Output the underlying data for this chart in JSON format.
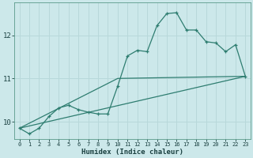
{
  "title": "",
  "xlabel": "Humidex (Indice chaleur)",
  "ylabel": "",
  "bg_color": "#cce8ea",
  "line_color": "#2e7d70",
  "grid_color": "#b8d8da",
  "xlim": [
    -0.5,
    23.5
  ],
  "ylim": [
    9.6,
    12.75
  ],
  "yticks": [
    10,
    11,
    12
  ],
  "xticks": [
    0,
    1,
    2,
    3,
    4,
    5,
    6,
    7,
    8,
    9,
    10,
    11,
    12,
    13,
    14,
    15,
    16,
    17,
    18,
    19,
    20,
    21,
    22,
    23
  ],
  "series_main": {
    "x": [
      0,
      1,
      2,
      3,
      4,
      5,
      6,
      7,
      8,
      9,
      10,
      11,
      12,
      13,
      14,
      15,
      16,
      17,
      18,
      19,
      20,
      21,
      22,
      23
    ],
    "y": [
      9.85,
      9.72,
      9.85,
      10.12,
      10.32,
      10.38,
      10.28,
      10.22,
      10.18,
      10.18,
      10.82,
      11.52,
      11.65,
      11.62,
      12.22,
      12.5,
      12.52,
      12.12,
      12.12,
      11.85,
      11.82,
      11.62,
      11.78,
      11.05
    ]
  },
  "series_bent": {
    "x": [
      0,
      10,
      23
    ],
    "y": [
      9.85,
      11.0,
      11.05
    ]
  },
  "series_straight": {
    "x": [
      0,
      23
    ],
    "y": [
      9.85,
      11.05
    ]
  }
}
